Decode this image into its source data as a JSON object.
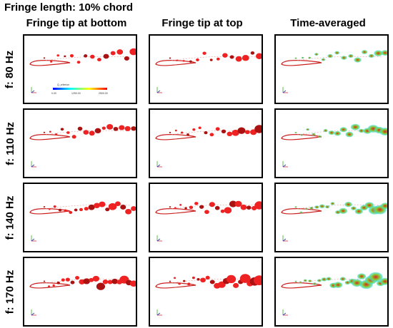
{
  "title": "Fringe length: 10% chord",
  "columns": [
    {
      "label": "Fringe tip at bottom",
      "kind": "instant-bottom"
    },
    {
      "label": "Fringe tip at top",
      "kind": "instant-top"
    },
    {
      "label": "Time-averaged",
      "kind": "average"
    }
  ],
  "rows": [
    {
      "label": "f: 80 Hz"
    },
    {
      "label": "f: 110 Hz"
    },
    {
      "label": "f: 140 Hz"
    },
    {
      "label": "f: 170 Hz"
    }
  ],
  "colorbar": {
    "title": "Q_criterion",
    "tick_labels": [
      "0.00",
      "1250.00",
      "2500.00"
    ],
    "colors": [
      "#0000ff",
      "#00ffff",
      "#ffff00",
      "#ff0000"
    ]
  },
  "colors": {
    "airfoil": "#cc2020",
    "vortex": "#ee2222",
    "vortex_dark": "#aa1111",
    "average_low": "#33ddee",
    "average_mid": "#88cc33",
    "average_high": "#dd2222"
  }
}
